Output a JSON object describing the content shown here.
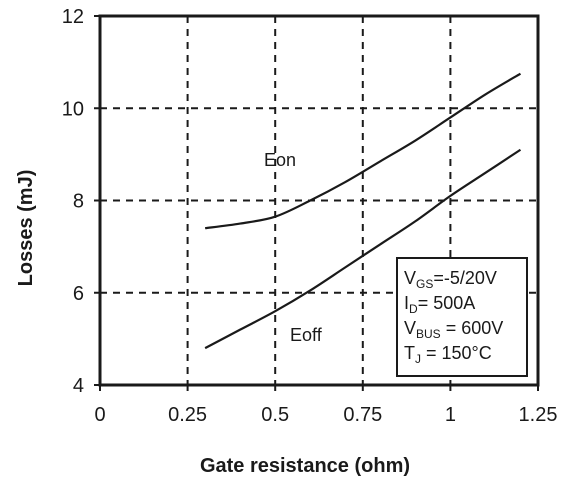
{
  "chart_data": {
    "type": "line",
    "title": "",
    "xlabel": "Gate resistance (ohm)",
    "ylabel": "Losses (mJ)",
    "xlim": [
      0,
      1.25
    ],
    "ylim": [
      4,
      12
    ],
    "x_ticks": [
      "0",
      "0.25",
      "0.5",
      "0.75",
      "1",
      "1.25"
    ],
    "y_ticks": [
      "4",
      "6",
      "8",
      "10",
      "12"
    ],
    "grid": "dashed",
    "series": [
      {
        "name": "Eon",
        "x": [
          0.3,
          0.4,
          0.5,
          0.6,
          0.7,
          0.8,
          0.9,
          1.0,
          1.1,
          1.2
        ],
        "y": [
          7.4,
          7.5,
          7.65,
          8.0,
          8.4,
          8.85,
          9.3,
          9.8,
          10.3,
          10.75
        ]
      },
      {
        "name": "Eoff",
        "x": [
          0.3,
          0.4,
          0.5,
          0.6,
          0.7,
          0.8,
          0.9,
          1.0,
          1.1,
          1.2
        ],
        "y": [
          4.8,
          5.2,
          5.6,
          6.05,
          6.55,
          7.05,
          7.55,
          8.1,
          8.6,
          9.1
        ]
      }
    ],
    "conditions": [
      {
        "main": "V",
        "sub": "GS",
        "rest": "=-5/20V"
      },
      {
        "main": "I",
        "sub": "D",
        "rest": "= 500A"
      },
      {
        "main": "V",
        "sub": "BUS",
        "rest": " = 600V"
      },
      {
        "main": "T",
        "sub": "J",
        "rest": " = 150°C"
      }
    ]
  }
}
